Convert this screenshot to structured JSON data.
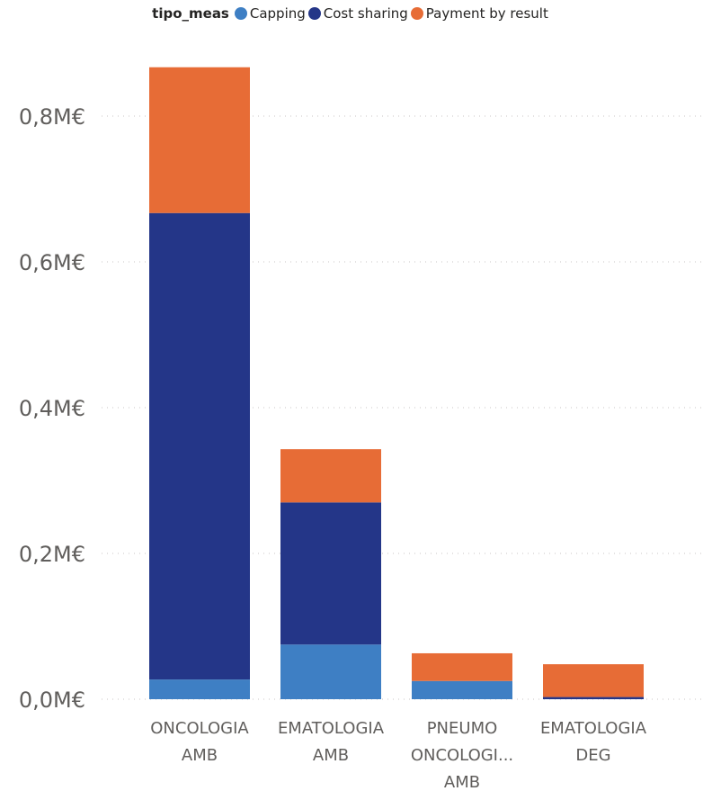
{
  "chart_data": {
    "type": "bar",
    "stacked": true,
    "legend": {
      "title": "tipo_meas",
      "position": "top-center"
    },
    "categories": [
      [
        "ONCOLOGIA",
        "AMB"
      ],
      [
        "EMATOLOGIA",
        "AMB"
      ],
      [
        "PNEUMO",
        "ONCOLOGI...",
        "AMB"
      ],
      [
        "EMATOLOGIA",
        "DEG"
      ]
    ],
    "series": [
      {
        "name": "Capping",
        "color": "#3e7fc4",
        "values": [
          0.027,
          0.075,
          0.025,
          0.0
        ]
      },
      {
        "name": "Cost sharing",
        "color": "#243688",
        "values": [
          0.64,
          0.195,
          0.0,
          0.003
        ]
      },
      {
        "name": "Payment by result",
        "color": "#e76c36",
        "values": [
          0.2,
          0.073,
          0.038,
          0.045
        ]
      }
    ],
    "ylim": [
      0,
      0.87
    ],
    "yticks": [
      {
        "value": 0.0,
        "label": "0,0M€"
      },
      {
        "value": 0.2,
        "label": "0,2M€"
      },
      {
        "value": 0.4,
        "label": "0,4M€"
      },
      {
        "value": 0.6,
        "label": "0,6M€"
      },
      {
        "value": 0.8,
        "label": "0,8M€"
      }
    ],
    "grid": "dotted-horizontal"
  }
}
